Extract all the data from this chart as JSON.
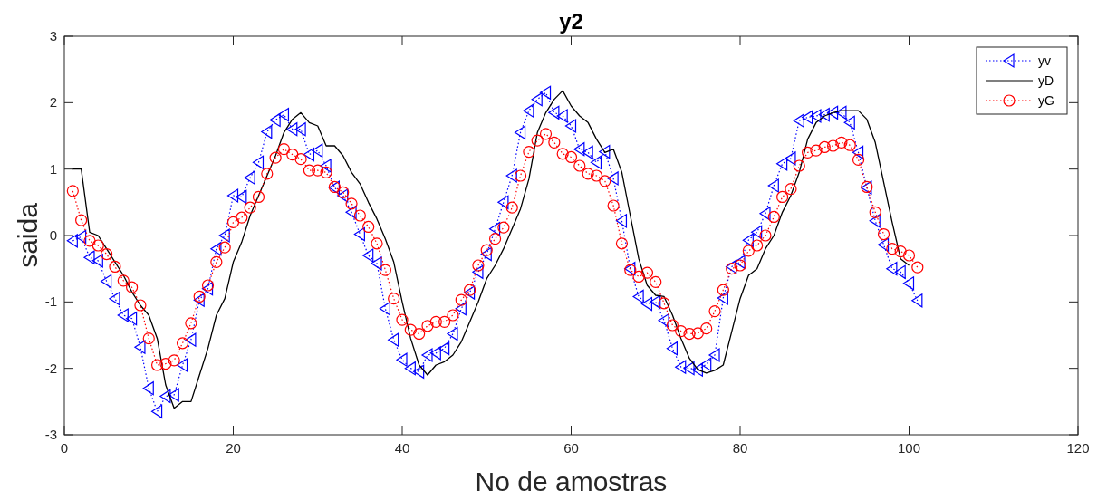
{
  "chart_data": {
    "type": "line",
    "title": "y2",
    "xlabel": "No de amostras",
    "ylabel": "saida",
    "xlim": [
      0,
      120
    ],
    "xticks": [
      0,
      20,
      40,
      60,
      80,
      100,
      120
    ],
    "ylim": [
      -3,
      3
    ],
    "yticks": [
      -3,
      -2,
      -1,
      0,
      1,
      2,
      3
    ],
    "grid": false,
    "legend": "top right",
    "series": [
      {
        "name": "yv",
        "color": "#0000ff",
        "marker": "triangle",
        "line_style": "dotted",
        "x": [
          1,
          2,
          3,
          4,
          5,
          6,
          7,
          8,
          9,
          10,
          11,
          12,
          13,
          14,
          15,
          16,
          17,
          18,
          19,
          20,
          21,
          22,
          23,
          24,
          25,
          26,
          27,
          28,
          29,
          30,
          31,
          32,
          33,
          34,
          35,
          36,
          37,
          38,
          39,
          40,
          41,
          42,
          43,
          44,
          45,
          46,
          47,
          48,
          49,
          50,
          51,
          52,
          53,
          54,
          55,
          56,
          57,
          58,
          59,
          60,
          61,
          62,
          63,
          64,
          65,
          66,
          67,
          68,
          69,
          70,
          71,
          72,
          73,
          74,
          75,
          76,
          77,
          78,
          79,
          80,
          81,
          82,
          83,
          84,
          85,
          86,
          87,
          88,
          89,
          90,
          91,
          92,
          93,
          94,
          95,
          96,
          97,
          98,
          99,
          100,
          101
        ],
        "values": [
          -0.08,
          -0.02,
          -0.33,
          -0.38,
          -0.69,
          -0.95,
          -1.2,
          -1.25,
          -1.68,
          -2.3,
          -2.65,
          -2.42,
          -2.4,
          -1.95,
          -1.57,
          -0.97,
          -0.8,
          -0.2,
          0.0,
          0.6,
          0.58,
          0.87,
          1.1,
          1.56,
          1.74,
          1.82,
          1.6,
          1.6,
          1.22,
          1.28,
          1.05,
          0.72,
          0.6,
          0.35,
          0.02,
          -0.3,
          -0.42,
          -1.1,
          -1.57,
          -1.87,
          -2.0,
          -2.05,
          -1.8,
          -1.77,
          -1.7,
          -1.48,
          -1.1,
          -0.86,
          -0.55,
          -0.28,
          0.1,
          0.5,
          0.9,
          1.55,
          1.88,
          2.05,
          2.15,
          1.85,
          1.8,
          1.65,
          1.3,
          1.25,
          1.1,
          1.26,
          0.86,
          0.22,
          -0.5,
          -0.92,
          -1.03,
          -1.0,
          -1.28,
          -1.7,
          -1.98,
          -2.0,
          -2.02,
          -1.94,
          -1.8,
          -0.94,
          -0.47,
          -0.4,
          -0.07,
          0.05,
          0.33,
          0.75,
          1.08,
          1.16,
          1.73,
          1.78,
          1.8,
          1.82,
          1.85,
          1.85,
          1.7,
          1.25,
          0.72,
          0.22,
          -0.14,
          -0.5,
          -0.55,
          -0.72,
          -0.98
        ]
      },
      {
        "name": "yD",
        "color": "#000000",
        "marker": "none",
        "line_style": "solid",
        "x": [
          1,
          2,
          3,
          4,
          5,
          6,
          7,
          8,
          9,
          10,
          11,
          12,
          13,
          14,
          15,
          16,
          17,
          18,
          19,
          20,
          21,
          22,
          23,
          24,
          25,
          26,
          27,
          28,
          29,
          30,
          31,
          32,
          33,
          34,
          35,
          36,
          37,
          38,
          39,
          40,
          41,
          42,
          43,
          44,
          45,
          46,
          47,
          48,
          49,
          50,
          51,
          52,
          53,
          54,
          55,
          56,
          57,
          58,
          59,
          60,
          61,
          62,
          63,
          64,
          65,
          66,
          67,
          68,
          69,
          70,
          71,
          72,
          73,
          74,
          75,
          76,
          77,
          78,
          79,
          80,
          81,
          82,
          83,
          84,
          85,
          86,
          87,
          88,
          89,
          90,
          91,
          92,
          93,
          94,
          95,
          96,
          97,
          98,
          99,
          100
        ],
        "values": [
          1,
          1,
          0.05,
          0.0,
          -0.2,
          -0.4,
          -0.6,
          -0.85,
          -1.05,
          -1.2,
          -1.55,
          -2.25,
          -2.6,
          -2.5,
          -2.5,
          -2.1,
          -1.7,
          -1.2,
          -0.95,
          -0.4,
          -0.1,
          0.3,
          0.6,
          0.9,
          1.2,
          1.55,
          1.75,
          1.85,
          1.7,
          1.65,
          1.35,
          1.35,
          1.2,
          0.95,
          0.78,
          0.5,
          0.25,
          -0.05,
          -0.4,
          -1.0,
          -1.55,
          -1.95,
          -2.1,
          -1.95,
          -1.9,
          -1.8,
          -1.6,
          -1.3,
          -1.0,
          -0.65,
          -0.45,
          -0.2,
          0.1,
          0.4,
          0.85,
          1.55,
          1.85,
          2.05,
          2.18,
          1.95,
          1.8,
          1.7,
          1.45,
          1.25,
          1.3,
          0.95,
          0.3,
          -0.35,
          -0.75,
          -0.9,
          -0.92,
          -1.2,
          -1.55,
          -1.85,
          -2.02,
          -2.07,
          -2.03,
          -1.95,
          -1.45,
          -0.95,
          -0.6,
          -0.5,
          -0.2,
          0.0,
          0.35,
          0.6,
          0.95,
          1.45,
          1.7,
          1.8,
          1.85,
          1.88,
          1.88,
          1.88,
          1.75,
          1.4,
          0.8,
          0.2,
          -0.35,
          -0.45
        ]
      },
      {
        "name": "yG",
        "color": "#ff0000",
        "marker": "circle",
        "line_style": "dotted",
        "x": [
          1,
          2,
          3,
          4,
          5,
          6,
          7,
          8,
          9,
          10,
          11,
          12,
          13,
          14,
          15,
          16,
          17,
          18,
          19,
          20,
          21,
          22,
          23,
          24,
          25,
          26,
          27,
          28,
          29,
          30,
          31,
          32,
          33,
          34,
          35,
          36,
          37,
          38,
          39,
          40,
          41,
          42,
          43,
          44,
          45,
          46,
          47,
          48,
          49,
          50,
          51,
          52,
          53,
          54,
          55,
          56,
          57,
          58,
          59,
          60,
          61,
          62,
          63,
          64,
          65,
          66,
          67,
          68,
          69,
          70,
          71,
          72,
          73,
          74,
          75,
          76,
          77,
          78,
          79,
          80,
          81,
          82,
          83,
          84,
          85,
          86,
          87,
          88,
          89,
          90,
          91,
          92,
          93,
          94,
          95,
          96,
          97,
          98,
          99,
          100,
          101
        ],
        "values": [
          0.67,
          0.23,
          -0.08,
          -0.15,
          -0.28,
          -0.47,
          -0.68,
          -0.78,
          -1.05,
          -1.55,
          -1.95,
          -1.93,
          -1.88,
          -1.62,
          -1.32,
          -0.92,
          -0.75,
          -0.4,
          -0.18,
          0.2,
          0.27,
          0.42,
          0.58,
          0.93,
          1.17,
          1.3,
          1.22,
          1.15,
          0.98,
          0.98,
          0.95,
          0.73,
          0.65,
          0.48,
          0.3,
          0.13,
          -0.12,
          -0.52,
          -0.95,
          -1.27,
          -1.42,
          -1.48,
          -1.36,
          -1.3,
          -1.3,
          -1.2,
          -0.97,
          -0.82,
          -0.45,
          -0.22,
          -0.05,
          0.12,
          0.42,
          0.9,
          1.26,
          1.43,
          1.53,
          1.4,
          1.23,
          1.18,
          1.05,
          0.93,
          0.9,
          0.82,
          0.45,
          -0.12,
          -0.52,
          -0.62,
          -0.56,
          -0.7,
          -1.02,
          -1.35,
          -1.44,
          -1.48,
          -1.47,
          -1.4,
          -1.14,
          -0.82,
          -0.5,
          -0.45,
          -0.23,
          -0.15,
          0.0,
          0.28,
          0.58,
          0.7,
          1.05,
          1.25,
          1.28,
          1.33,
          1.35,
          1.4,
          1.36,
          1.14,
          0.73,
          0.35,
          0.02,
          -0.2,
          -0.24,
          -0.3,
          -0.48
        ]
      }
    ]
  }
}
